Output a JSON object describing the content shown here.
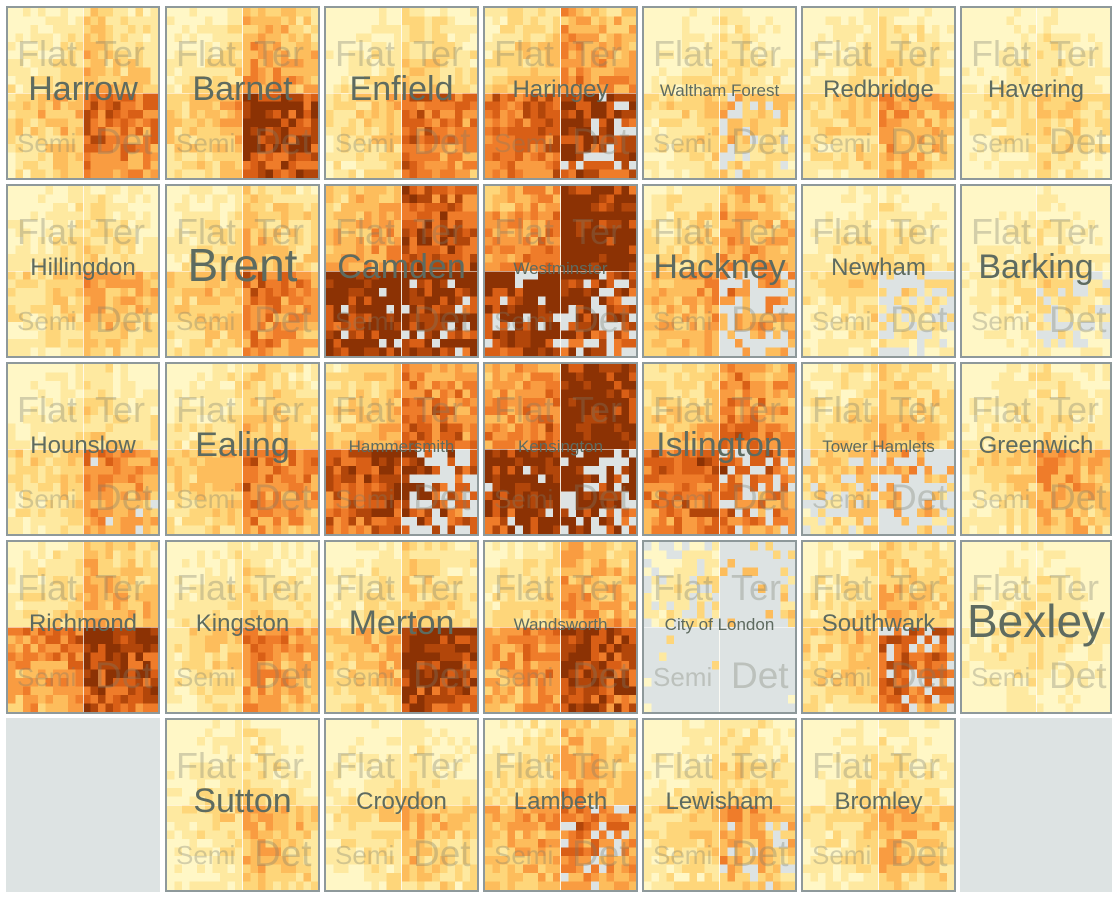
{
  "chart_data": {
    "type": "heatmap",
    "title": "",
    "quadrant_labels": [
      "Flat",
      "Ter",
      "Semi",
      "Det"
    ],
    "colors": {
      "scale": [
        "#fff7c6",
        "#fee9a0",
        "#fed67a",
        "#fdbd5c",
        "#f99c41",
        "#ef7c2a",
        "#d95f16",
        "#b2460a",
        "#8c3204"
      ],
      "missing": "#dde3e3",
      "border": "#8e999b",
      "label": "#5e6b60"
    },
    "grid": {
      "rows": 5,
      "cols": 7
    },
    "boroughs": [
      {
        "name": "Harrow",
        "row": 0,
        "col": 0,
        "size": "large",
        "levels": {
          "flat": 0.15,
          "ter": 0.28,
          "semi": 0.3,
          "det": 0.62
        },
        "missing": {
          "flat": 0,
          "ter": 0,
          "semi": 0,
          "det": 0
        }
      },
      {
        "name": "Barnet",
        "row": 0,
        "col": 1,
        "size": "large",
        "levels": {
          "flat": 0.15,
          "ter": 0.42,
          "semi": 0.32,
          "det": 0.82
        },
        "missing": {
          "flat": 0,
          "ter": 0,
          "semi": 0,
          "det": 0
        }
      },
      {
        "name": "Enfield",
        "row": 0,
        "col": 2,
        "size": "large",
        "levels": {
          "flat": 0.12,
          "ter": 0.22,
          "semi": 0.25,
          "det": 0.6
        },
        "missing": {
          "flat": 0,
          "ter": 0,
          "semi": 0,
          "det": 0
        }
      },
      {
        "name": "Haringey",
        "row": 0,
        "col": 3,
        "size": "medium",
        "levels": {
          "flat": 0.25,
          "ter": 0.45,
          "semi": 0.65,
          "det": 0.85
        },
        "missing": {
          "flat": 0,
          "ter": 0,
          "semi": 0,
          "det": 0.18
        }
      },
      {
        "name": "Waltham Forest",
        "row": 0,
        "col": 4,
        "size": "small",
        "levels": {
          "flat": 0.1,
          "ter": 0.15,
          "semi": 0.22,
          "det": 0.3
        },
        "missing": {
          "flat": 0,
          "ter": 0,
          "semi": 0,
          "det": 0.18
        }
      },
      {
        "name": "Redbridge",
        "row": 0,
        "col": 5,
        "size": "medium",
        "levels": {
          "flat": 0.12,
          "ter": 0.2,
          "semi": 0.25,
          "det": 0.42
        },
        "missing": {
          "flat": 0,
          "ter": 0,
          "semi": 0,
          "det": 0
        }
      },
      {
        "name": "Havering",
        "row": 0,
        "col": 6,
        "size": "medium",
        "levels": {
          "flat": 0.08,
          "ter": 0.12,
          "semi": 0.15,
          "det": 0.25
        },
        "missing": {
          "flat": 0,
          "ter": 0,
          "semi": 0,
          "det": 0
        }
      },
      {
        "name": "Hillingdon",
        "row": 1,
        "col": 0,
        "size": "medium",
        "levels": {
          "flat": 0.12,
          "ter": 0.18,
          "semi": 0.22,
          "det": 0.38
        },
        "missing": {
          "flat": 0,
          "ter": 0,
          "semi": 0,
          "det": 0
        }
      },
      {
        "name": "Brent",
        "row": 1,
        "col": 1,
        "size": "xlarge",
        "levels": {
          "flat": 0.15,
          "ter": 0.3,
          "semi": 0.3,
          "det": 0.55
        },
        "missing": {
          "flat": 0,
          "ter": 0,
          "semi": 0,
          "det": 0
        }
      },
      {
        "name": "Camden",
        "row": 1,
        "col": 2,
        "size": "large",
        "levels": {
          "flat": 0.42,
          "ter": 0.75,
          "semi": 0.95,
          "det": 0.9
        },
        "missing": {
          "flat": 0,
          "ter": 0,
          "semi": 0.04,
          "det": 0.12
        }
      },
      {
        "name": "Westminster",
        "row": 1,
        "col": 3,
        "size": "small",
        "levels": {
          "flat": 0.52,
          "ter": 0.98,
          "semi": 0.92,
          "det": 0.85
        },
        "missing": {
          "flat": 0,
          "ter": 0,
          "semi": 0.12,
          "det": 0.28
        }
      },
      {
        "name": "Hackney",
        "row": 1,
        "col": 4,
        "size": "large",
        "levels": {
          "flat": 0.22,
          "ter": 0.4,
          "semi": 0.4,
          "det": 0.5
        },
        "missing": {
          "flat": 0,
          "ter": 0,
          "semi": 0,
          "det": 0.42
        }
      },
      {
        "name": "Newham",
        "row": 1,
        "col": 5,
        "size": "medium",
        "levels": {
          "flat": 0.12,
          "ter": 0.15,
          "semi": 0.18,
          "det": 0.22
        },
        "missing": {
          "flat": 0,
          "ter": 0,
          "semi": 0,
          "det": 0.45
        }
      },
      {
        "name": "Barking",
        "row": 1,
        "col": 6,
        "size": "large",
        "levels": {
          "flat": 0.08,
          "ter": 0.1,
          "semi": 0.12,
          "det": 0.18
        },
        "missing": {
          "flat": 0,
          "ter": 0,
          "semi": 0,
          "det": 0.35
        }
      },
      {
        "name": "Hounslow",
        "row": 2,
        "col": 0,
        "size": "medium",
        "levels": {
          "flat": 0.12,
          "ter": 0.18,
          "semi": 0.22,
          "det": 0.48
        },
        "missing": {
          "flat": 0,
          "ter": 0,
          "semi": 0,
          "det": 0.08
        }
      },
      {
        "name": "Ealing",
        "row": 2,
        "col": 1,
        "size": "large",
        "levels": {
          "flat": 0.15,
          "ter": 0.28,
          "semi": 0.3,
          "det": 0.55
        },
        "missing": {
          "flat": 0,
          "ter": 0,
          "semi": 0,
          "det": 0
        }
      },
      {
        "name": "Hammersmith",
        "row": 2,
        "col": 2,
        "size": "small",
        "levels": {
          "flat": 0.3,
          "ter": 0.6,
          "semi": 0.75,
          "det": 0.8
        },
        "missing": {
          "flat": 0,
          "ter": 0,
          "semi": 0,
          "det": 0.45
        }
      },
      {
        "name": "Kensington",
        "row": 2,
        "col": 3,
        "size": "small",
        "levels": {
          "flat": 0.55,
          "ter": 0.98,
          "semi": 0.92,
          "det": 0.95
        },
        "missing": {
          "flat": 0,
          "ter": 0,
          "semi": 0.08,
          "det": 0.35
        }
      },
      {
        "name": "Islington",
        "row": 2,
        "col": 4,
        "size": "large",
        "levels": {
          "flat": 0.3,
          "ter": 0.55,
          "semi": 0.65,
          "det": 0.62
        },
        "missing": {
          "flat": 0,
          "ter": 0,
          "semi": 0,
          "det": 0.3
        }
      },
      {
        "name": "Tower Hamlets",
        "row": 2,
        "col": 5,
        "size": "small",
        "levels": {
          "flat": 0.2,
          "ter": 0.3,
          "semi": 0.3,
          "det": 0.4
        },
        "missing": {
          "flat": 0,
          "ter": 0,
          "semi": 0.3,
          "det": 0.55
        }
      },
      {
        "name": "Greenwich",
        "row": 2,
        "col": 6,
        "size": "medium",
        "levels": {
          "flat": 0.12,
          "ter": 0.18,
          "semi": 0.22,
          "det": 0.42
        },
        "missing": {
          "flat": 0,
          "ter": 0,
          "semi": 0,
          "det": 0
        }
      },
      {
        "name": "Richmond",
        "row": 3,
        "col": 0,
        "size": "medium",
        "levels": {
          "flat": 0.18,
          "ter": 0.35,
          "semi": 0.52,
          "det": 0.82
        },
        "missing": {
          "flat": 0,
          "ter": 0,
          "semi": 0,
          "det": 0
        }
      },
      {
        "name": "Kingston",
        "row": 3,
        "col": 1,
        "size": "medium",
        "levels": {
          "flat": 0.12,
          "ter": 0.2,
          "semi": 0.22,
          "det": 0.48
        },
        "missing": {
          "flat": 0,
          "ter": 0,
          "semi": 0,
          "det": 0
        }
      },
      {
        "name": "Merton",
        "row": 3,
        "col": 2,
        "size": "large",
        "levels": {
          "flat": 0.15,
          "ter": 0.25,
          "semi": 0.32,
          "det": 0.88
        },
        "missing": {
          "flat": 0,
          "ter": 0,
          "semi": 0,
          "det": 0
        }
      },
      {
        "name": "Wandsworth",
        "row": 3,
        "col": 3,
        "size": "small",
        "levels": {
          "flat": 0.2,
          "ter": 0.4,
          "semi": 0.5,
          "det": 0.82
        },
        "missing": {
          "flat": 0,
          "ter": 0,
          "semi": 0,
          "det": 0
        }
      },
      {
        "name": "City of London",
        "row": 3,
        "col": 4,
        "size": "small",
        "levels": {
          "flat": 0.15,
          "ter": 0.3,
          "semi": 0.2,
          "det": 0.1
        },
        "missing": {
          "flat": 0.35,
          "ter": 0.85,
          "semi": 0.97,
          "det": 0.99
        }
      },
      {
        "name": "Southwark",
        "row": 3,
        "col": 5,
        "size": "medium",
        "levels": {
          "flat": 0.18,
          "ter": 0.3,
          "semi": 0.3,
          "det": 0.65
        },
        "missing": {
          "flat": 0,
          "ter": 0,
          "semi": 0,
          "det": 0.22
        }
      },
      {
        "name": "Bexley",
        "row": 3,
        "col": 6,
        "size": "xlarge",
        "levels": {
          "flat": 0.08,
          "ter": 0.1,
          "semi": 0.12,
          "det": 0.12
        },
        "missing": {
          "flat": 0,
          "ter": 0,
          "semi": 0,
          "det": 0
        }
      },
      {
        "name": "Sutton",
        "row": 4,
        "col": 1,
        "size": "large",
        "levels": {
          "flat": 0.1,
          "ter": 0.15,
          "semi": 0.15,
          "det": 0.35
        },
        "missing": {
          "flat": 0,
          "ter": 0,
          "semi": 0,
          "det": 0
        }
      },
      {
        "name": "Croydon",
        "row": 4,
        "col": 2,
        "size": "medium",
        "levels": {
          "flat": 0.1,
          "ter": 0.15,
          "semi": 0.18,
          "det": 0.32
        },
        "missing": {
          "flat": 0,
          "ter": 0,
          "semi": 0,
          "det": 0
        }
      },
      {
        "name": "Lambeth",
        "row": 4,
        "col": 3,
        "size": "medium",
        "levels": {
          "flat": 0.2,
          "ter": 0.35,
          "semi": 0.4,
          "det": 0.55
        },
        "missing": {
          "flat": 0,
          "ter": 0,
          "semi": 0,
          "det": 0.15
        }
      },
      {
        "name": "Lewisham",
        "row": 4,
        "col": 4,
        "size": "medium",
        "levels": {
          "flat": 0.12,
          "ter": 0.2,
          "semi": 0.22,
          "det": 0.4
        },
        "missing": {
          "flat": 0,
          "ter": 0,
          "semi": 0,
          "det": 0.15
        }
      },
      {
        "name": "Bromley",
        "row": 4,
        "col": 5,
        "size": "medium",
        "levels": {
          "flat": 0.1,
          "ter": 0.15,
          "semi": 0.18,
          "det": 0.35
        },
        "missing": {
          "flat": 0,
          "ter": 0,
          "semi": 0,
          "det": 0
        }
      }
    ],
    "empty_cells": [
      {
        "row": 4,
        "col": 0
      },
      {
        "row": 4,
        "col": 6
      }
    ]
  }
}
